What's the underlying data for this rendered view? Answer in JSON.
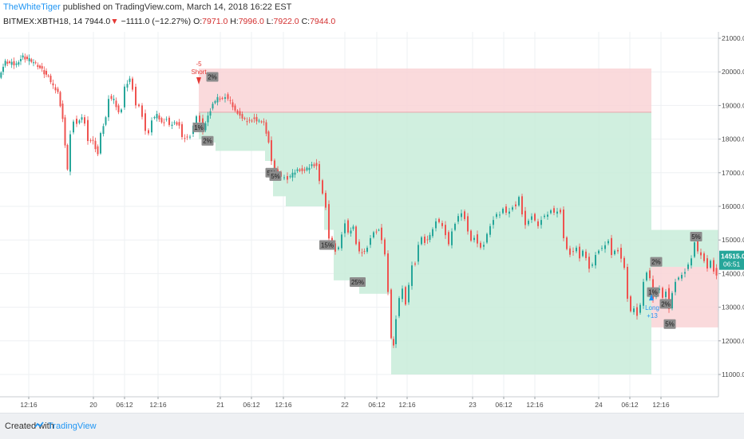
{
  "header": {
    "author": "TheWhiteTiger",
    "published": " published on TradingView.com, March 14, 2018 16:22 EST",
    "symbol": "BITMEX:XBTH18, 14",
    "last": "7944.0",
    "change": "−1111.0 (−12.27%)",
    "o_label": "O:",
    "o_value": "7971.0",
    "h_label": "H:",
    "h_value": "7996.0",
    "l_label": "L:",
    "l_value": "7922.0",
    "c_label": "C:",
    "c_value": "7944.0",
    "down_arrow": "▼"
  },
  "footer": {
    "created": "Created with",
    "brand": "TradingView",
    "logo_icon": "tradingview-logo-icon"
  },
  "chart_data": {
    "type": "candlestick",
    "ylim": [
      10500,
      21300
    ],
    "y_ticks": [
      "11000.0",
      "12000.0",
      "13000.0",
      "14000.0",
      "15000.0",
      "16000.0",
      "17000.0",
      "18000.0",
      "19000.0",
      "20000.0",
      "21000.0"
    ],
    "x_ticks": [
      "12:16",
      "20",
      "06:12",
      "12:16",
      "21",
      "06:12",
      "12:16",
      "22",
      "06:12",
      "12:16",
      "23",
      "06:12",
      "12:16",
      "24",
      "06:12",
      "12:16"
    ],
    "price_labels": {
      "top": "14515.0",
      "bottom": "06:51"
    },
    "price_path": [
      [
        0,
        19850
      ],
      [
        8,
        20300
      ],
      [
        16,
        20250
      ],
      [
        22,
        20250
      ],
      [
        30,
        20450
      ],
      [
        38,
        20350
      ],
      [
        46,
        20250
      ],
      [
        54,
        20050
      ],
      [
        62,
        19850
      ],
      [
        68,
        19600
      ],
      [
        74,
        19400
      ],
      [
        80,
        18600
      ],
      [
        86,
        17100
      ],
      [
        90,
        18200
      ],
      [
        94,
        18550
      ],
      [
        98,
        18500
      ],
      [
        104,
        18650
      ],
      [
        108,
        18500
      ],
      [
        112,
        18000
      ],
      [
        118,
        17950
      ],
      [
        124,
        17550
      ],
      [
        128,
        18200
      ],
      [
        134,
        18650
      ],
      [
        138,
        19250
      ],
      [
        144,
        19200
      ],
      [
        150,
        18800
      ],
      [
        154,
        18900
      ],
      [
        158,
        19600
      ],
      [
        164,
        19800
      ],
      [
        168,
        19500
      ],
      [
        172,
        19050
      ],
      [
        176,
        19000
      ],
      [
        180,
        18700
      ],
      [
        184,
        18300
      ],
      [
        188,
        18200
      ],
      [
        192,
        18600
      ],
      [
        198,
        18750
      ],
      [
        204,
        18500
      ],
      [
        210,
        18600
      ],
      [
        214,
        18450
      ],
      [
        220,
        18500
      ],
      [
        226,
        18400
      ],
      [
        230,
        18100
      ],
      [
        236,
        18050
      ],
      [
        240,
        18100
      ],
      [
        244,
        18450
      ],
      [
        248,
        18700
      ],
      [
        252,
        18550
      ],
      [
        256,
        18300
      ],
      [
        262,
        18700
      ],
      [
        268,
        19050
      ],
      [
        274,
        19250
      ],
      [
        280,
        19200
      ],
      [
        284,
        19300
      ],
      [
        290,
        19150
      ],
      [
        296,
        18850
      ],
      [
        302,
        18700
      ],
      [
        308,
        18600
      ],
      [
        314,
        18550
      ],
      [
        320,
        18600
      ],
      [
        326,
        18550
      ],
      [
        332,
        18500
      ],
      [
        338,
        17900
      ],
      [
        342,
        17400
      ],
      [
        346,
        17100
      ],
      [
        350,
        17000
      ],
      [
        354,
        16900
      ],
      [
        358,
        16900
      ],
      [
        362,
        16850
      ],
      [
        368,
        17000
      ],
      [
        374,
        17100
      ],
      [
        380,
        17050
      ],
      [
        386,
        17150
      ],
      [
        392,
        17250
      ],
      [
        398,
        17200
      ],
      [
        402,
        16800
      ],
      [
        406,
        16400
      ],
      [
        410,
        16000
      ],
      [
        414,
        15100
      ],
      [
        418,
        14900
      ],
      [
        422,
        14700
      ],
      [
        426,
        14800
      ],
      [
        430,
        15200
      ],
      [
        434,
        15550
      ],
      [
        438,
        15250
      ],
      [
        444,
        15400
      ],
      [
        448,
        14900
      ],
      [
        452,
        14700
      ],
      [
        458,
        14650
      ],
      [
        462,
        14800
      ],
      [
        466,
        15100
      ],
      [
        470,
        15250
      ],
      [
        476,
        15300
      ],
      [
        480,
        15050
      ],
      [
        484,
        14600
      ],
      [
        488,
        13500
      ],
      [
        492,
        12100
      ],
      [
        494,
        11900
      ],
      [
        498,
        12700
      ],
      [
        502,
        13300
      ],
      [
        506,
        13600
      ],
      [
        510,
        13100
      ],
      [
        514,
        13700
      ],
      [
        518,
        14300
      ],
      [
        522,
        14300
      ],
      [
        526,
        14900
      ],
      [
        530,
        15100
      ],
      [
        534,
        14950
      ],
      [
        540,
        15150
      ],
      [
        544,
        15350
      ],
      [
        548,
        15600
      ],
      [
        552,
        15550
      ],
      [
        556,
        15450
      ],
      [
        560,
        15200
      ],
      [
        564,
        14900
      ],
      [
        568,
        15300
      ],
      [
        572,
        15500
      ],
      [
        576,
        15750
      ],
      [
        580,
        15850
      ],
      [
        584,
        15650
      ],
      [
        588,
        15300
      ],
      [
        592,
        15000
      ],
      [
        596,
        15100
      ],
      [
        600,
        14950
      ],
      [
        604,
        14800
      ],
      [
        608,
        14900
      ],
      [
        612,
        15200
      ],
      [
        616,
        15450
      ],
      [
        620,
        15650
      ],
      [
        624,
        15800
      ],
      [
        628,
        15800
      ],
      [
        632,
        15950
      ],
      [
        636,
        15850
      ],
      [
        640,
        15900
      ],
      [
        644,
        16000
      ],
      [
        648,
        16050
      ],
      [
        652,
        16300
      ],
      [
        656,
        15800
      ],
      [
        660,
        15500
      ],
      [
        664,
        15600
      ],
      [
        668,
        15750
      ],
      [
        672,
        15600
      ],
      [
        676,
        15450
      ],
      [
        680,
        15650
      ],
      [
        684,
        15750
      ],
      [
        688,
        15800
      ],
      [
        692,
        15900
      ],
      [
        696,
        15850
      ],
      [
        700,
        15900
      ],
      [
        704,
        15850
      ],
      [
        708,
        15100
      ],
      [
        712,
        14750
      ],
      [
        716,
        14600
      ],
      [
        720,
        14700
      ],
      [
        724,
        14800
      ],
      [
        728,
        14500
      ],
      [
        732,
        14700
      ],
      [
        736,
        14500
      ],
      [
        740,
        14200
      ],
      [
        744,
        14300
      ],
      [
        748,
        14600
      ],
      [
        752,
        14700
      ],
      [
        756,
        14800
      ],
      [
        760,
        14900
      ],
      [
        764,
        15000
      ],
      [
        768,
        14600
      ],
      [
        772,
        14700
      ],
      [
        776,
        14700
      ],
      [
        780,
        14500
      ],
      [
        784,
        14200
      ],
      [
        788,
        13300
      ],
      [
        792,
        12900
      ],
      [
        796,
        13000
      ],
      [
        800,
        12800
      ],
      [
        804,
        13100
      ],
      [
        808,
        13800
      ],
      [
        812,
        14050
      ],
      [
        816,
        13900
      ],
      [
        820,
        13300
      ],
      [
        824,
        13450
      ],
      [
        828,
        13600
      ],
      [
        832,
        13300
      ],
      [
        836,
        13500
      ],
      [
        840,
        13000
      ],
      [
        844,
        13450
      ],
      [
        848,
        13800
      ],
      [
        852,
        13900
      ],
      [
        856,
        14000
      ],
      [
        860,
        14100
      ],
      [
        864,
        14300
      ],
      [
        868,
        14500
      ],
      [
        872,
        14950
      ],
      [
        876,
        14700
      ],
      [
        880,
        14600
      ],
      [
        884,
        14400
      ],
      [
        888,
        14200
      ],
      [
        892,
        14400
      ],
      [
        896,
        14100
      ],
      [
        899,
        14000
      ]
    ],
    "zones": {
      "short_stop": {
        "x": [
          249,
          816
        ],
        "y": [
          20100,
          18800
        ]
      },
      "short_profit": {
        "steps": [
          [
            249,
            18800,
            18000
          ],
          [
            262,
            18800,
            17900
          ],
          [
            270,
            18800,
            17650
          ],
          [
            320,
            18800,
            17650
          ],
          [
            332,
            18800,
            17350
          ],
          [
            342,
            18800,
            16300
          ],
          [
            358,
            18800,
            16000
          ],
          [
            406,
            18800,
            15300
          ],
          [
            418,
            18800,
            13800
          ],
          [
            450,
            18800,
            13400
          ],
          [
            490,
            18800,
            11000
          ],
          [
            816,
            18800,
            11000
          ]
        ]
      },
      "long_profit": {
        "x": [
          816,
          900
        ],
        "y": [
          15300,
          14200
        ]
      },
      "long_stop": {
        "x": [
          816,
          900
        ],
        "y": [
          14200,
          12400
        ]
      }
    },
    "annotations": {
      "short_label": "Short",
      "short_size": "-5",
      "long_label": "Long",
      "long_size": "+13",
      "badges": [
        {
          "text": "2%",
          "x": 266,
          "price": 19850
        },
        {
          "text": "1%",
          "x": 249,
          "price": 18350
        },
        {
          "text": "2%",
          "x": 260,
          "price": 17950
        },
        {
          "text": "5%",
          "x": 340,
          "price": 17000
        },
        {
          "text": "5%",
          "x": 345,
          "price": 16900
        },
        {
          "text": "15%",
          "x": 410,
          "price": 14850
        },
        {
          "text": "25%",
          "x": 448,
          "price": 13750
        },
        {
          "text": "2%",
          "x": 822,
          "price": 14350
        },
        {
          "text": "1%",
          "x": 818,
          "price": 13450
        },
        {
          "text": "2%",
          "x": 834,
          "price": 13100
        },
        {
          "text": "5%",
          "x": 839,
          "price": 12500
        },
        {
          "text": "5%",
          "x": 872,
          "price": 15100
        }
      ]
    },
    "colors": {
      "up": "#26a69a",
      "down": "#ef5350",
      "profit_fill": "#c8ecd9",
      "stop_fill": "#f9d3d6",
      "long_arrow": "#2196f3",
      "short_arrow": "#e53935"
    }
  }
}
